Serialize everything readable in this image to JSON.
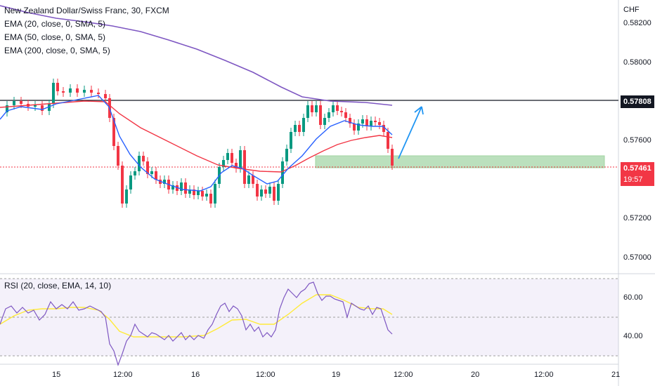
{
  "legend": {
    "symbol": "New Zealand Dollar/Swiss Franc, 30, FXCM",
    "ema1": "EMA (20, close, 0, SMA, 5)",
    "ema2": "EMA (50, close, 0, SMA, 5)",
    "ema3": "EMA (200, close, 0, SMA, 5)"
  },
  "rsi_legend": "RSI (20, close, EMA, 14, 10)",
  "price_axis": {
    "currency": "CHF",
    "ticks": [
      "0.58200",
      "0.58000",
      "0.57600",
      "0.57200",
      "0.57000"
    ],
    "resistance_label": "0.57808",
    "last_price": "0.57461",
    "countdown": "19:57"
  },
  "rsi_axis": {
    "ticks": [
      "60.00",
      "40.00"
    ]
  },
  "time_axis": {
    "labels": [
      "15",
      "12:00",
      "16",
      "12:00",
      "19",
      "12:00",
      "20",
      "12:00",
      "21"
    ]
  },
  "colors": {
    "up": "#089981",
    "down": "#f23645",
    "ema20": "#2962ff",
    "ema50": "#f23645",
    "ema200": "#7e57c2",
    "rsi_line": "#7e57c2",
    "rsi_ma": "#ffeb3b",
    "zone": "#a5d6a7",
    "arrow": "#2196f3"
  }
}
